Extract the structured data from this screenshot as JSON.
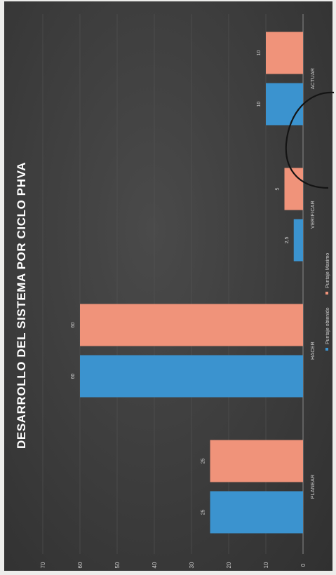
{
  "chart_data": {
    "type": "bar",
    "title": "DESARROLLO DEL SISTEMA POR CICLO PHVA",
    "categories": [
      "PLANEAR",
      "HACER",
      "VERIFICAR",
      "ACTUAR"
    ],
    "series": [
      {
        "name": "Puntaje obtenido",
        "values": [
          25,
          60,
          2.5,
          10
        ],
        "color": "#3b93cf"
      },
      {
        "name": "Puntaje Maximo",
        "values": [
          25,
          60,
          5,
          10
        ],
        "color": "#f0937a"
      }
    ],
    "data_labels": [
      [
        "25",
        "60",
        "2,5",
        "10"
      ],
      [
        "25",
        "60",
        "5",
        "10"
      ]
    ],
    "y_ticks": [
      "0",
      "10",
      "20",
      "30",
      "40",
      "50",
      "60",
      "70"
    ],
    "ylim": [
      0,
      70
    ],
    "grid": true,
    "legend_position": "bottom",
    "orientation": "photo rotated 90 degrees clockwise",
    "annotation": "hand-drawn circle around the VERIFICAR bars"
  }
}
